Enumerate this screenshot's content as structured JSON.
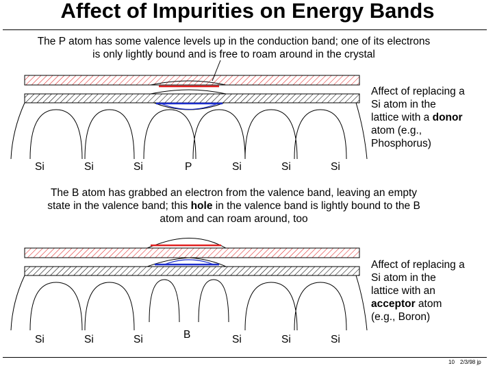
{
  "title": "Affect of Impurities on Energy Bands",
  "donor": {
    "caption_line1": "The P atom has some valence levels up in the conduction band; one of its electrons",
    "caption_line2": "is only lightly bound and is free to roam around in the crystal",
    "side_line1": "Affect of replacing a",
    "side_line2": "Si atom in the",
    "side_line3_pre": "lattice with a ",
    "side_line3_bold": "donor",
    "side_line4": "atom (e.g.,",
    "side_line5": "Phosphorus)",
    "atoms": [
      "Si",
      "Si",
      "Si",
      "P",
      "Si",
      "Si",
      "Si"
    ]
  },
  "acceptor": {
    "caption_line1": "The B atom has grabbed an electron from the valence band, leaving an empty",
    "caption_line2_pre": "state in the valence band; this ",
    "caption_line2_bold": "hole",
    "caption_line2_post": " in the valence band is lightly bound to the B",
    "caption_line3": "atom and can roam around, too",
    "side_line1": "Affect of replacing a",
    "side_line2": "Si atom in the",
    "side_line3": "lattice with an",
    "side_line4_bold": "acceptor",
    "side_line4_post": " atom",
    "side_line5": "(e.g., Boron)",
    "atoms": [
      "Si",
      "Si",
      "Si",
      "B",
      "Si",
      "Si",
      "Si"
    ]
  },
  "footer": {
    "slide_number": "10",
    "date_author": "2/3/98 jp"
  },
  "colors": {
    "conduction_hatch": "#e02020",
    "valence_hatch": "#000000",
    "donor_level": "#e02020",
    "valence_level": "#1a2ccc"
  }
}
